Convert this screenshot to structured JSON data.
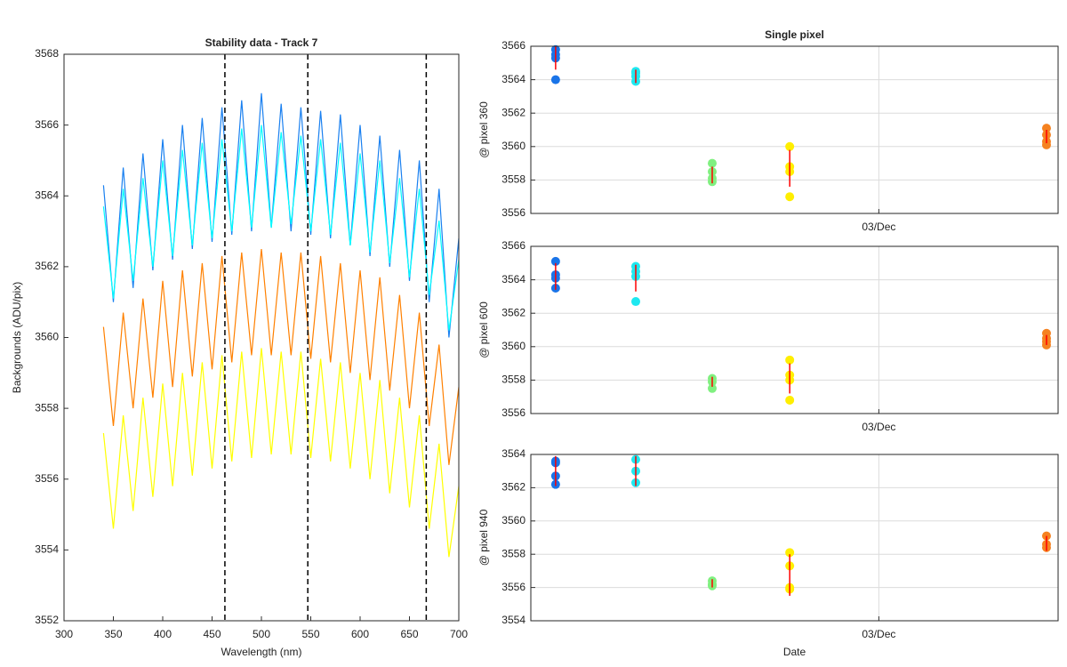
{
  "chart_data": [
    {
      "type": "line",
      "title": "Stability data - Track 7",
      "x_label": "Wavelength (nm)",
      "y_label": "Backgrounds (ADU/pix)",
      "xlim": [
        300,
        700
      ],
      "ylim": [
        3552,
        3568
      ],
      "xticks": [
        300,
        350,
        400,
        450,
        500,
        550,
        600,
        650,
        700
      ],
      "yticks": [
        3552,
        3554,
        3556,
        3558,
        3560,
        3562,
        3564,
        3566,
        3568
      ],
      "x": [
        340,
        350,
        360,
        370,
        380,
        390,
        400,
        410,
        420,
        430,
        440,
        450,
        460,
        470,
        480,
        490,
        500,
        510,
        520,
        530,
        540,
        550,
        560,
        570,
        580,
        590,
        600,
        610,
        620,
        630,
        640,
        650,
        660,
        670,
        680,
        690,
        700
      ],
      "series": [
        {
          "color": "#1a80f0",
          "values": [
            3564.3,
            3561.0,
            3564.8,
            3561.4,
            3565.2,
            3561.9,
            3565.6,
            3562.2,
            3566.0,
            3562.5,
            3566.2,
            3562.7,
            3566.5,
            3562.9,
            3566.7,
            3563.0,
            3566.9,
            3563.1,
            3566.6,
            3563.0,
            3566.5,
            3562.9,
            3566.4,
            3562.8,
            3566.3,
            3562.6,
            3566.0,
            3562.3,
            3565.7,
            3562.0,
            3565.3,
            3561.6,
            3565.0,
            3561.0,
            3564.2,
            3560.0,
            3562.8
          ]
        },
        {
          "color": "#00ffff",
          "values": [
            3563.7,
            3561.1,
            3564.2,
            3561.6,
            3564.5,
            3562.0,
            3565.0,
            3562.3,
            3565.3,
            3562.6,
            3565.5,
            3562.8,
            3565.6,
            3563.0,
            3565.9,
            3563.1,
            3566.0,
            3563.1,
            3565.8,
            3563.2,
            3565.7,
            3563.0,
            3565.6,
            3562.9,
            3565.5,
            3562.6,
            3565.2,
            3562.4,
            3565.0,
            3562.1,
            3564.5,
            3561.7,
            3564.2,
            3561.2,
            3563.3,
            3560.2,
            3562.2
          ]
        },
        {
          "color": "#ff8000",
          "values": [
            3560.3,
            3557.5,
            3560.7,
            3558.0,
            3561.1,
            3558.3,
            3561.6,
            3558.6,
            3561.9,
            3558.9,
            3562.1,
            3559.1,
            3562.3,
            3559.3,
            3562.4,
            3559.5,
            3562.5,
            3559.5,
            3562.4,
            3559.5,
            3562.4,
            3559.4,
            3562.3,
            3559.3,
            3562.1,
            3559.0,
            3561.9,
            3558.8,
            3561.7,
            3558.5,
            3561.2,
            3558.0,
            3560.7,
            3557.5,
            3559.8,
            3556.4,
            3558.6
          ]
        },
        {
          "color": "#ffff00",
          "values": [
            3557.3,
            3554.6,
            3557.8,
            3555.1,
            3558.3,
            3555.5,
            3558.7,
            3555.8,
            3559.0,
            3556.1,
            3559.3,
            3556.3,
            3559.5,
            3556.5,
            3559.6,
            3556.6,
            3559.7,
            3556.7,
            3559.6,
            3556.7,
            3559.6,
            3556.6,
            3559.4,
            3556.5,
            3559.3,
            3556.3,
            3559.0,
            3556.0,
            3558.8,
            3555.6,
            3558.3,
            3555.2,
            3557.8,
            3554.6,
            3557.0,
            3553.8,
            3555.8
          ]
        }
      ],
      "vlines": [
        463,
        547,
        667
      ]
    },
    {
      "type": "scatter",
      "title": "Single pixel",
      "y_label": "@ pixel 360",
      "grid": true,
      "xlim": [
        0,
        10
      ],
      "ylim": [
        3556,
        3566
      ],
      "xticks": [
        {
          "value": 6.6,
          "label": "03/Dec"
        }
      ],
      "yticks": [
        3556,
        3558,
        3560,
        3562,
        3564,
        3566
      ],
      "series": [
        {
          "color": "#1a74e8",
          "x": [
            0.47,
            0.47,
            0.47,
            0.47
          ],
          "values": [
            3565.8,
            3565.3,
            3565.5,
            3564.0
          ]
        },
        {
          "color": "#1ee8f0",
          "x": [
            1.99,
            1.99,
            1.99,
            1.99
          ],
          "values": [
            3564.5,
            3564.2,
            3563.9,
            3564.4
          ]
        },
        {
          "color": "#80f080",
          "x": [
            3.44,
            3.44,
            3.44,
            3.44
          ],
          "values": [
            3559.0,
            3558.5,
            3558.1,
            3557.9
          ]
        },
        {
          "color": "#ffee00",
          "x": [
            4.91,
            4.91,
            4.91,
            4.91
          ],
          "values": [
            3560.0,
            3558.8,
            3558.5,
            3557.0
          ]
        },
        {
          "color": "#f58220",
          "x": [
            9.78,
            9.78,
            9.78,
            9.78
          ],
          "values": [
            3561.1,
            3560.7,
            3560.3,
            3560.1
          ]
        }
      ],
      "range_color": "#ff0000",
      "ranges": [
        {
          "x": 0.47,
          "low": 3564.6,
          "high": 3566.0
        },
        {
          "x": 1.99,
          "low": 3563.8,
          "high": 3564.6
        },
        {
          "x": 3.44,
          "low": 3557.8,
          "high": 3558.8
        },
        {
          "x": 4.91,
          "low": 3557.6,
          "high": 3559.8
        },
        {
          "x": 9.78,
          "low": 3560.2,
          "high": 3561.0
        }
      ]
    },
    {
      "type": "scatter",
      "y_label": "@ pixel 600",
      "grid": true,
      "xlim": [
        0,
        10
      ],
      "ylim": [
        3556,
        3566
      ],
      "xticks": [
        {
          "value": 6.6,
          "label": "03/Dec"
        }
      ],
      "yticks": [
        3556,
        3558,
        3560,
        3562,
        3564,
        3566
      ],
      "series": [
        {
          "color": "#1a74e8",
          "x": [
            0.47,
            0.47,
            0.47,
            0.47
          ],
          "values": [
            3565.1,
            3564.3,
            3564.1,
            3563.5
          ]
        },
        {
          "color": "#1ee8f0",
          "x": [
            1.99,
            1.99,
            1.99,
            1.99
          ],
          "values": [
            3564.8,
            3564.5,
            3564.2,
            3562.7
          ]
        },
        {
          "color": "#80f080",
          "x": [
            3.44,
            3.44,
            3.44
          ],
          "values": [
            3558.1,
            3557.9,
            3557.5
          ]
        },
        {
          "color": "#ffee00",
          "x": [
            4.91,
            4.91,
            4.91,
            4.91
          ],
          "values": [
            3559.2,
            3558.3,
            3558.0,
            3556.8
          ]
        },
        {
          "color": "#f58220",
          "x": [
            9.78,
            9.78,
            9.78,
            9.78
          ],
          "values": [
            3560.8,
            3560.5,
            3560.3,
            3560.1
          ]
        }
      ],
      "range_color": "#ff0000",
      "ranges": [
        {
          "x": 0.47,
          "low": 3563.4,
          "high": 3565.0
        },
        {
          "x": 1.99,
          "low": 3563.3,
          "high": 3564.9
        },
        {
          "x": 3.44,
          "low": 3557.6,
          "high": 3558.2
        },
        {
          "x": 4.91,
          "low": 3557.2,
          "high": 3559.0
        },
        {
          "x": 9.78,
          "low": 3560.1,
          "high": 3560.7
        }
      ]
    },
    {
      "type": "scatter",
      "x_label": "Date",
      "y_label": "@ pixel 940",
      "grid": true,
      "xlim": [
        0,
        10
      ],
      "ylim": [
        3554,
        3564
      ],
      "xticks": [
        {
          "value": 6.6,
          "label": "03/Dec"
        }
      ],
      "yticks": [
        3554,
        3556,
        3558,
        3560,
        3562,
        3564
      ],
      "series": [
        {
          "color": "#1a74e8",
          "x": [
            0.47,
            0.47,
            0.47,
            0.47
          ],
          "values": [
            3563.6,
            3563.5,
            3562.7,
            3562.2
          ]
        },
        {
          "color": "#1ee8f0",
          "x": [
            1.99,
            1.99,
            1.99
          ],
          "values": [
            3563.7,
            3563.0,
            3562.3
          ]
        },
        {
          "color": "#80f080",
          "x": [
            3.44,
            3.44,
            3.44
          ],
          "values": [
            3556.4,
            3556.2,
            3556.1
          ]
        },
        {
          "color": "#ffee00",
          "x": [
            4.91,
            4.91,
            4.91,
            4.91
          ],
          "values": [
            3558.1,
            3557.3,
            3556.0,
            3555.9
          ]
        },
        {
          "color": "#f58220",
          "x": [
            9.78,
            9.78,
            9.78
          ],
          "values": [
            3559.1,
            3558.6,
            3558.4
          ]
        }
      ],
      "range_color": "#ff0000",
      "ranges": [
        {
          "x": 0.47,
          "low": 3562.1,
          "high": 3563.9
        },
        {
          "x": 1.99,
          "low": 3562.1,
          "high": 3563.9
        },
        {
          "x": 3.44,
          "low": 3556.0,
          "high": 3556.5
        },
        {
          "x": 4.91,
          "low": 3555.5,
          "high": 3558.0
        },
        {
          "x": 9.78,
          "low": 3558.2,
          "high": 3559.1
        }
      ]
    }
  ]
}
